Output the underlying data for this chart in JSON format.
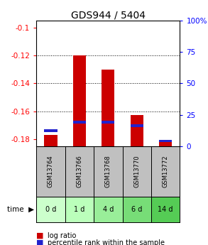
{
  "title": "GDS944 / 5404",
  "samples": [
    "GSM13764",
    "GSM13766",
    "GSM13768",
    "GSM13770",
    "GSM13772"
  ],
  "time_labels": [
    "0 d",
    "1 d",
    "4 d",
    "6 d",
    "14 d"
  ],
  "log_ratios": [
    -0.177,
    -0.12,
    -0.13,
    -0.163,
    -0.1815
  ],
  "percentile_ranks": [
    12,
    19,
    19,
    16,
    4
  ],
  "ylim_left": [
    -0.185,
    -0.095
  ],
  "ylim_right": [
    0,
    100
  ],
  "yticks_left": [
    -0.18,
    -0.16,
    -0.14,
    -0.12,
    -0.1
  ],
  "yticks_right": [
    0,
    25,
    50,
    75,
    100
  ],
  "bar_color_red": "#CC0000",
  "bar_color_blue": "#2222CC",
  "bar_width": 0.45,
  "sample_bg_color": "#C0C0C0",
  "time_bg_colors": [
    "#CCFFCC",
    "#BBFFBB",
    "#99EE99",
    "#77DD77",
    "#55CC55"
  ],
  "legend_red": "log ratio",
  "legend_blue": "percentile rank within the sample",
  "title_fontsize": 10,
  "tick_fontsize": 7.5,
  "legend_fontsize": 7
}
